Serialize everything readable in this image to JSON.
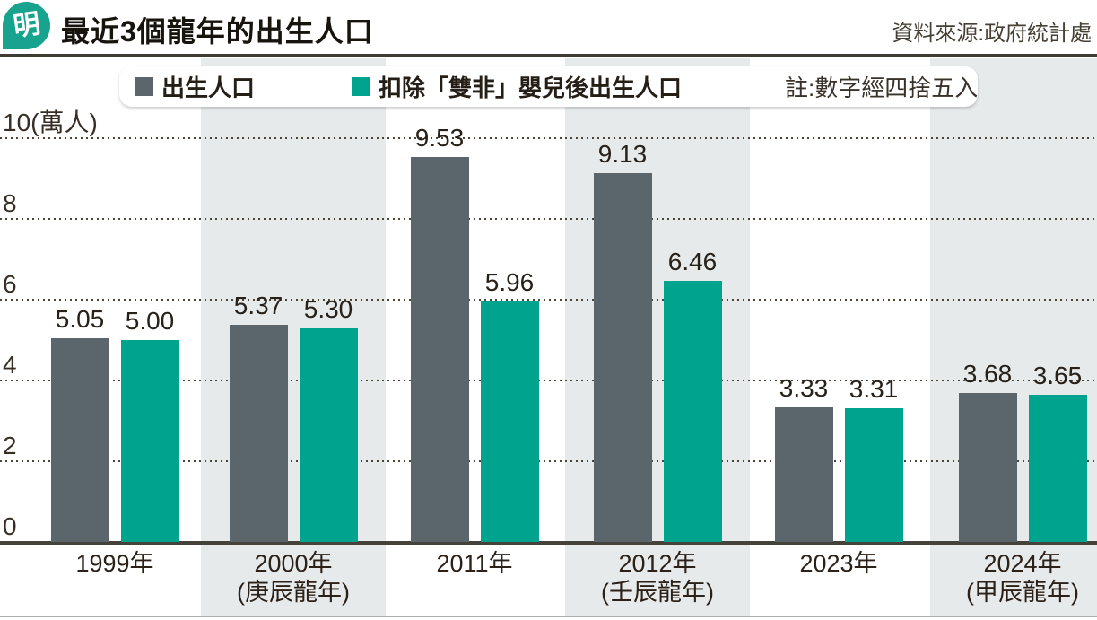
{
  "header": {
    "logo_text": "明",
    "title": "最近3個龍年的出生人口",
    "source": "資料來源:政府統計處"
  },
  "legend": {
    "items": [
      {
        "label": "出生人口",
        "color": "#5a666b"
      },
      {
        "label": "扣除「雙非」嬰兒後出生人口",
        "color": "#00a48e"
      }
    ],
    "note": "註:數字經四捨五入"
  },
  "chart_data": {
    "type": "bar",
    "title": "最近3個龍年的出生人口",
    "unit": "萬人",
    "ylim": [
      0,
      10
    ],
    "grid": "horizontal-dotted",
    "legend_position": "top-left",
    "highlight_band_color": "#e6eaeb",
    "yticks": [
      {
        "value": 10,
        "label": "10(萬人)"
      },
      {
        "value": 8,
        "label": "8"
      },
      {
        "value": 6,
        "label": "6"
      },
      {
        "value": 4,
        "label": "4"
      },
      {
        "value": 2,
        "label": "2"
      },
      {
        "value": 0,
        "label": "0"
      }
    ],
    "categories": [
      {
        "label": "1999年",
        "sublabel": "",
        "highlight": false
      },
      {
        "label": "2000年",
        "sublabel": "(庚辰龍年)",
        "highlight": true
      },
      {
        "label": "2011年",
        "sublabel": "",
        "highlight": false
      },
      {
        "label": "2012年",
        "sublabel": "(壬辰龍年)",
        "highlight": true
      },
      {
        "label": "2023年",
        "sublabel": "",
        "highlight": false
      },
      {
        "label": "2024年",
        "sublabel": "(甲辰龍年)",
        "highlight": true
      }
    ],
    "series": [
      {
        "name": "出生人口",
        "color": "#5a666b",
        "values": [
          5.05,
          5.37,
          9.53,
          9.13,
          3.33,
          3.68
        ]
      },
      {
        "name": "扣除「雙非」嬰兒後出生人口",
        "color": "#00a48e",
        "values": [
          5.0,
          5.3,
          5.96,
          6.46,
          3.31,
          3.65
        ]
      }
    ]
  }
}
